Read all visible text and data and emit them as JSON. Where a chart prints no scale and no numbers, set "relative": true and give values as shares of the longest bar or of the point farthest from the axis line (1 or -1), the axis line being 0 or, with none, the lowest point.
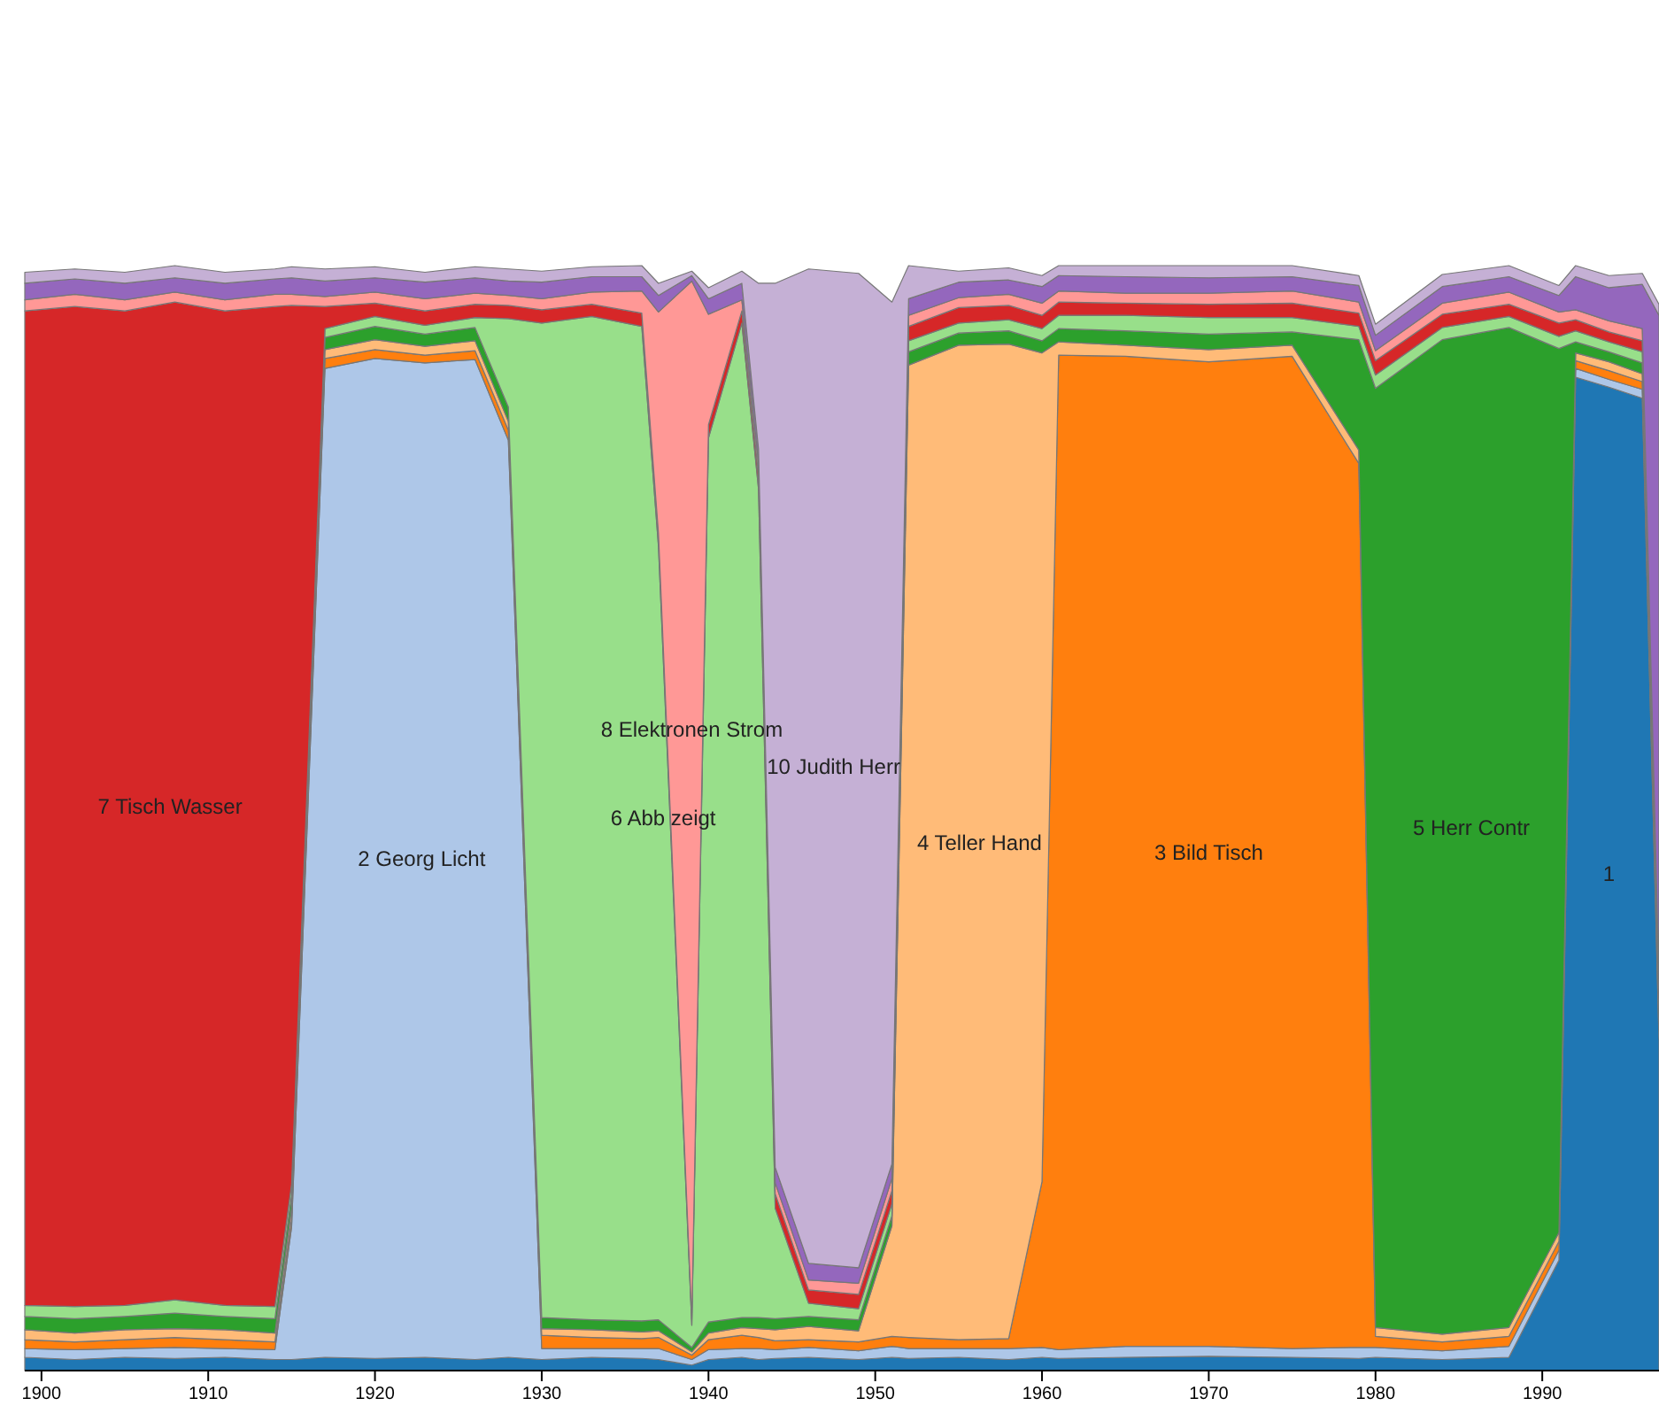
{
  "chart_data": {
    "type": "area",
    "stacked": true,
    "relative": true,
    "x": [
      1899,
      1902,
      1905,
      1908,
      1911,
      1914,
      1915,
      1917,
      1920,
      1923,
      1926,
      1928,
      1930,
      1933,
      1936,
      1937,
      1939,
      1940,
      1942,
      1943,
      1944,
      1946,
      1949,
      1951,
      1952,
      1955,
      1958,
      1960,
      1961,
      1965,
      1970,
      1975,
      1979,
      1980,
      1984,
      1988,
      1991,
      1992,
      1994,
      1996,
      1997
    ],
    "xlim": [
      1899,
      1997
    ],
    "xticks": [
      1900,
      1910,
      1920,
      1930,
      1940,
      1950,
      1960,
      1970,
      1980,
      1990
    ],
    "series": [
      {
        "name": "1",
        "color": "#1f77b4",
        "values": [
          0.012,
          0.01,
          0.012,
          0.011,
          0.012,
          0.01,
          0.01,
          0.012,
          0.011,
          0.012,
          0.01,
          0.012,
          0.01,
          0.012,
          0.011,
          0.01,
          0.005,
          0.01,
          0.012,
          0.01,
          0.011,
          0.012,
          0.01,
          0.012,
          0.011,
          0.012,
          0.01,
          0.012,
          0.011,
          0.012,
          0.013,
          0.012,
          0.011,
          0.012,
          0.01,
          0.012,
          0.1,
          0.899,
          0.89,
          0.88,
          0.3
        ]
      },
      {
        "name": "2 Georg Licht",
        "color": "#aec7e8",
        "values": [
          0.008,
          0.009,
          0.008,
          0.01,
          0.008,
          0.009,
          0.12,
          0.895,
          0.905,
          0.9,
          0.905,
          0.83,
          0.01,
          0.008,
          0.009,
          0.01,
          0.005,
          0.009,
          0.008,
          0.01,
          0.008,
          0.009,
          0.008,
          0.01,
          0.009,
          0.008,
          0.01,
          0.009,
          0.008,
          0.01,
          0.009,
          0.008,
          0.01,
          0.009,
          0.008,
          0.01,
          0.009,
          0.008,
          0.007,
          0.008,
          0.008
        ]
      },
      {
        "name": "3 Bild Tisch",
        "color": "#ff7f0e",
        "values": [
          0.008,
          0.007,
          0.008,
          0.009,
          0.008,
          0.007,
          0.008,
          0.009,
          0.008,
          0.007,
          0.008,
          0.009,
          0.012,
          0.01,
          0.009,
          0.01,
          0.004,
          0.009,
          0.012,
          0.01,
          0.008,
          0.007,
          0.008,
          0.009,
          0.01,
          0.008,
          0.009,
          0.15,
          0.9,
          0.896,
          0.891,
          0.898,
          0.8,
          0.01,
          0.008,
          0.009,
          0.008,
          0.007,
          0.008,
          0.007,
          0.006
        ]
      },
      {
        "name": "4 Teller Hand",
        "color": "#ffbb78",
        "values": [
          0.009,
          0.008,
          0.009,
          0.008,
          0.009,
          0.008,
          0.009,
          0.008,
          0.009,
          0.008,
          0.009,
          0.008,
          0.006,
          0.007,
          0.006,
          0.006,
          0.003,
          0.006,
          0.007,
          0.008,
          0.01,
          0.012,
          0.01,
          0.1,
          0.88,
          0.9,
          0.9,
          0.75,
          0.012,
          0.01,
          0.011,
          0.01,
          0.012,
          0.008,
          0.007,
          0.008,
          0.008,
          0.007,
          0.008,
          0.007,
          0.006
        ]
      },
      {
        "name": "5 Herr Contr",
        "color": "#2ca02c",
        "values": [
          0.012,
          0.013,
          0.012,
          0.014,
          0.012,
          0.013,
          0.012,
          0.011,
          0.012,
          0.011,
          0.012,
          0.013,
          0.01,
          0.009,
          0.01,
          0.01,
          0.004,
          0.01,
          0.009,
          0.01,
          0.01,
          0.009,
          0.01,
          0.009,
          0.012,
          0.011,
          0.012,
          0.011,
          0.012,
          0.013,
          0.014,
          0.012,
          0.1,
          0.85,
          0.9,
          0.905,
          0.8,
          0.01,
          0.009,
          0.01,
          0.008
        ]
      },
      {
        "name": "6 Abb zeigt",
        "color": "#98df8a",
        "values": [
          0.01,
          0.011,
          0.01,
          0.012,
          0.01,
          0.011,
          0.01,
          0.008,
          0.009,
          0.008,
          0.009,
          0.08,
          0.9,
          0.908,
          0.9,
          0.7,
          0.02,
          0.8,
          0.9,
          0.75,
          0.1,
          0.012,
          0.01,
          0.011,
          0.01,
          0.009,
          0.01,
          0.011,
          0.012,
          0.014,
          0.015,
          0.013,
          0.012,
          0.012,
          0.011,
          0.01,
          0.011,
          0.01,
          0.009,
          0.01,
          0.008
        ]
      },
      {
        "name": "7 Tisch Wasser",
        "color": "#d62728",
        "values": [
          0.9,
          0.905,
          0.9,
          0.903,
          0.9,
          0.905,
          0.795,
          0.02,
          0.012,
          0.013,
          0.012,
          0.012,
          0.012,
          0.011,
          0.012,
          0.012,
          0.005,
          0.012,
          0.011,
          0.012,
          0.013,
          0.012,
          0.013,
          0.012,
          0.013,
          0.014,
          0.013,
          0.012,
          0.012,
          0.011,
          0.012,
          0.013,
          0.012,
          0.013,
          0.012,
          0.011,
          0.012,
          0.01,
          0.009,
          0.01,
          0.009
        ]
      },
      {
        "name": "8 Elektronen Strom",
        "color": "#ff9896",
        "values": [
          0.01,
          0.011,
          0.01,
          0.009,
          0.01,
          0.011,
          0.01,
          0.009,
          0.01,
          0.011,
          0.01,
          0.009,
          0.01,
          0.011,
          0.02,
          0.2,
          0.94,
          0.1,
          0.01,
          0.011,
          0.01,
          0.009,
          0.01,
          0.011,
          0.01,
          0.009,
          0.01,
          0.011,
          0.01,
          0.009,
          0.01,
          0.011,
          0.01,
          0.009,
          0.01,
          0.011,
          0.01,
          0.009,
          0.01,
          0.011,
          0.01
        ]
      },
      {
        "color": "#9467bd",
        "values": [
          0.015,
          0.014,
          0.015,
          0.013,
          0.015,
          0.014,
          0.015,
          0.014,
          0.013,
          0.015,
          0.014,
          0.013,
          0.015,
          0.014,
          0.013,
          0.015,
          0.005,
          0.014,
          0.015,
          0.013,
          0.014,
          0.015,
          0.014,
          0.013,
          0.015,
          0.014,
          0.013,
          0.015,
          0.014,
          0.015,
          0.014,
          0.013,
          0.015,
          0.014,
          0.015,
          0.014,
          0.015,
          0.03,
          0.03,
          0.04,
          0.6
        ]
      },
      {
        "name": "10 Judith Herr",
        "color": "#c5b0d5",
        "values": [
          0.01,
          0.009,
          0.01,
          0.011,
          0.01,
          0.009,
          0.01,
          0.011,
          0.01,
          0.009,
          0.01,
          0.011,
          0.01,
          0.009,
          0.01,
          0.011,
          0.004,
          0.01,
          0.011,
          0.15,
          0.8,
          0.9,
          0.9,
          0.78,
          0.03,
          0.01,
          0.011,
          0.01,
          0.009,
          0.01,
          0.011,
          0.01,
          0.009,
          0.01,
          0.011,
          0.01,
          0.009,
          0.01,
          0.011,
          0.01,
          0.01
        ]
      }
    ]
  }
}
